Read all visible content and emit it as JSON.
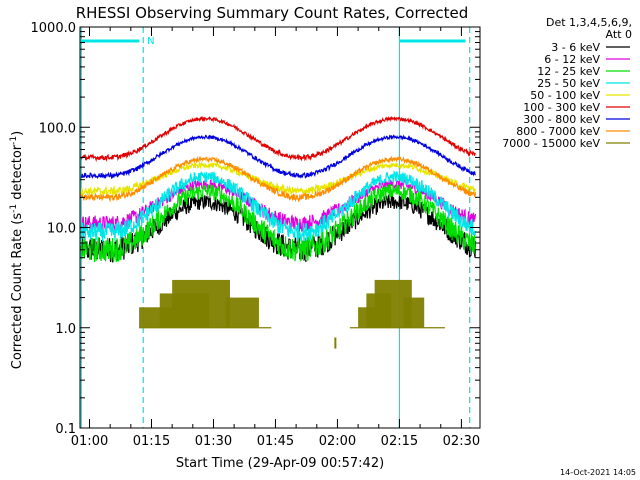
{
  "chart_data": {
    "type": "line",
    "title": "RHESSI Observing Summary Count Rates, Corrected",
    "xlabel": "Start Time (29-Apr-09 00:57:42)",
    "ylabel_main": "Corrected Count Rate (s",
    "ylabel_sup1": "-1",
    "ylabel_mid": " detector",
    "ylabel_sup2": "-1",
    "ylabel_end": ")",
    "yscale": "log",
    "ylim": [
      0.1,
      1000
    ],
    "xlim_minutes": [
      57.7,
      154.5
    ],
    "x_ticks": [
      {
        "label": "01:00",
        "minute": 60
      },
      {
        "label": "01:15",
        "minute": 75
      },
      {
        "label": "01:30",
        "minute": 90
      },
      {
        "label": "01:45",
        "minute": 105
      },
      {
        "label": "02:00",
        "minute": 120
      },
      {
        "label": "02:15",
        "minute": 135
      },
      {
        "label": "02:30",
        "minute": 150
      }
    ],
    "y_ticks": [
      {
        "label": "1000.0",
        "value": 1000
      },
      {
        "label": "100.0",
        "value": 100
      },
      {
        "label": "10.0",
        "value": 10
      },
      {
        "label": "1.0",
        "value": 1
      },
      {
        "label": "0.1",
        "value": 0.1
      }
    ],
    "legend": {
      "header_line1": "Det 1,3,4,5,6,9,",
      "header_line2": "Att 0",
      "position": "right"
    },
    "night_label": "N",
    "night_intervals_minutes": [
      [
        58,
        72
      ],
      [
        135,
        151
      ]
    ],
    "shade_boundaries_minutes": [
      58,
      73,
      135,
      152
    ],
    "series": [
      {
        "name": "3 - 6 keV",
        "color": "#000000",
        "min_value": 6,
        "max_value": 18,
        "noise": 0.08
      },
      {
        "name": "6 - 12 keV",
        "color": "#e000e0",
        "min_value": 11,
        "max_value": 27,
        "noise": 0.05
      },
      {
        "name": "12 - 25 keV",
        "color": "#00e000",
        "min_value": 6,
        "max_value": 23,
        "noise": 0.08
      },
      {
        "name": "25 - 50 keV",
        "color": "#00e5e5",
        "min_value": 9,
        "max_value": 32,
        "noise": 0.06
      },
      {
        "name": "50 - 100 keV",
        "color": "#e5e500",
        "min_value": 23,
        "max_value": 42,
        "noise": 0.025
      },
      {
        "name": "100 - 300 keV",
        "color": "#e00000",
        "min_value": 50,
        "max_value": 122,
        "noise": 0.015
      },
      {
        "name": "300 - 800 keV",
        "color": "#0000e0",
        "min_value": 33,
        "max_value": 80,
        "noise": 0.015
      },
      {
        "name": "800 - 7000 keV",
        "color": "#ff8c00",
        "min_value": 20,
        "max_value": 48,
        "noise": 0.02
      },
      {
        "name": "7000 - 15000 keV",
        "color": "#808000",
        "min_value": 1,
        "max_value": 3,
        "noise": 0
      }
    ],
    "peak_minutes": [
      88,
      134
    ],
    "period_minutes": 46,
    "attenuator_step_segments_minutes": [
      {
        "from": 72,
        "to": 82,
        "level": 1.6
      },
      {
        "from": 77,
        "to": 89,
        "level": 2.2
      },
      {
        "from": 80,
        "to": 94,
        "level": 3
      },
      {
        "from": 93,
        "to": 101,
        "level": 2
      },
      {
        "from": 98,
        "to": 104,
        "level": 1
      },
      {
        "from": 125,
        "to": 129,
        "level": 1.6
      },
      {
        "from": 127,
        "to": 133,
        "level": 2.2
      },
      {
        "from": 129,
        "to": 138,
        "level": 3
      },
      {
        "from": 136,
        "to": 141,
        "level": 2
      },
      {
        "from": 139,
        "to": 146,
        "level": 1
      }
    ],
    "timestamp": "14-Oct-2021 14:05"
  }
}
